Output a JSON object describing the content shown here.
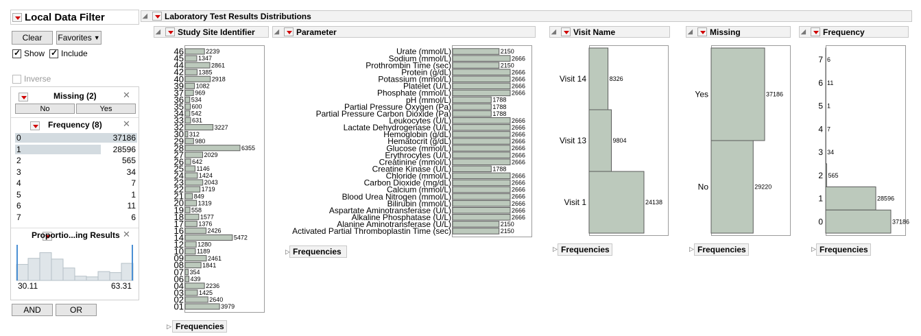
{
  "filter": {
    "title": "Local Data Filter",
    "clear_label": "Clear",
    "favorites_label": "Favorites",
    "show_label": "Show",
    "include_label": "Include",
    "inverse_label": "Inverse",
    "missing": {
      "title": "Missing (2)",
      "options": [
        "No",
        "Yes"
      ]
    },
    "frequency": {
      "title": "Frequency (8)",
      "rows": [
        {
          "label": "0",
          "count": "37186",
          "frac": 1.0
        },
        {
          "label": "1",
          "count": "28596",
          "frac": 0.7
        },
        {
          "label": "2",
          "count": "565",
          "frac": 0
        },
        {
          "label": "3",
          "count": "34",
          "frac": 0
        },
        {
          "label": "4",
          "count": "7",
          "frac": 0
        },
        {
          "label": "5",
          "count": "1",
          "frac": 0
        },
        {
          "label": "6",
          "count": "11",
          "frac": 0
        },
        {
          "label": "7",
          "count": "6",
          "frac": 0
        }
      ]
    },
    "proportion": {
      "title": "Proportio...ing Results",
      "min": "30.11",
      "max": "63.31",
      "histogram": [
        0.45,
        0.62,
        0.78,
        0.6,
        0.35,
        0.12,
        0.1,
        0.25,
        0.22,
        0.48
      ]
    },
    "and_label": "AND",
    "or_label": "OR"
  },
  "report": {
    "title": "Laboratory Test Results Distributions",
    "frequencies_label": "Frequencies"
  },
  "colors": {
    "bar": "#bcc9bc",
    "bar_stroke": "#5a5a5a",
    "filter_bar": "#d3dbe0",
    "accent": "#d00000"
  },
  "chart_data": [
    {
      "type": "bar",
      "title": "Study Site Identifier",
      "categories": [
        "46",
        "45",
        "44",
        "42",
        "40",
        "39",
        "37",
        "36",
        "35",
        "34",
        "33",
        "32",
        "30",
        "29",
        "28",
        "27",
        "26",
        "25",
        "24",
        "23",
        "22",
        "21",
        "20",
        "19",
        "18",
        "17",
        "16",
        "14",
        "12",
        "10",
        "09",
        "08",
        "07",
        "06",
        "04",
        "03",
        "02",
        "01"
      ],
      "values": [
        2239,
        1347,
        2861,
        1385,
        2918,
        1082,
        969,
        534,
        600,
        542,
        631,
        3227,
        312,
        980,
        6355,
        2029,
        642,
        1146,
        1424,
        2043,
        1719,
        849,
        1319,
        558,
        1577,
        1376,
        2426,
        5472,
        1280,
        1189,
        2461,
        1841,
        354,
        439,
        2236,
        1425,
        2640,
        3979
      ]
    },
    {
      "type": "bar",
      "title": "Parameter",
      "categories": [
        "Urate (mmol/L)",
        "Sodium (mmol/L)",
        "Prothrombin Time (sec)",
        "Protein (g/dL)",
        "Potassium (mmol/L)",
        "Platelet (U/L)",
        "Phosphate (mmol/L)",
        "pH (mmol/L)",
        "Partial Pressure Oxygen (Pa)",
        "Partial Pressure Carbon Dioxide (Pa)",
        "Leukocytes (U/L)",
        "Lactate Dehydrogenase (U/L)",
        "Hemoglobin (g/dL)",
        "Hematocrit (g/dL)",
        "Glucose (mmol/L)",
        "Erythrocytes (U/L)",
        "Creatinine (mmol/L)",
        "Creatine Kinase (U/L)",
        "Chloride (mmol/L)",
        "Carbon Dioxide (mg/dL)",
        "Calcium (mmol/L)",
        "Blood Urea Nitrogen (mmol/L)",
        "Bilirubin (mmol/L)",
        "Aspartate Aminotransferase (U/L)",
        "Alkaline Phosphatase (U/L)",
        "Alanine Aminotransferase (U/L)",
        "Activated Partial Thromboplastin Time (sec)"
      ],
      "values": [
        2150,
        2666,
        2150,
        2666,
        2666,
        2666,
        2666,
        1788,
        1788,
        1788,
        2666,
        2666,
        2666,
        2666,
        2666,
        2666,
        2666,
        1788,
        2666,
        2666,
        2666,
        2666,
        2666,
        2666,
        2666,
        2150,
        2150
      ]
    },
    {
      "type": "bar",
      "title": "Visit Name",
      "categories": [
        "Visit 14",
        "Visit 13",
        "Visit 1"
      ],
      "values": [
        8326,
        9804,
        24138
      ]
    },
    {
      "type": "bar",
      "title": "Missing",
      "categories": [
        "Yes",
        "No"
      ],
      "values": [
        37186,
        29220
      ]
    },
    {
      "type": "bar",
      "title": "Frequency",
      "categories": [
        "7",
        "6",
        "5",
        "4",
        "3",
        "2",
        "1",
        "0"
      ],
      "values": [
        6,
        11,
        1,
        7,
        34,
        565,
        28596,
        37186
      ]
    }
  ]
}
